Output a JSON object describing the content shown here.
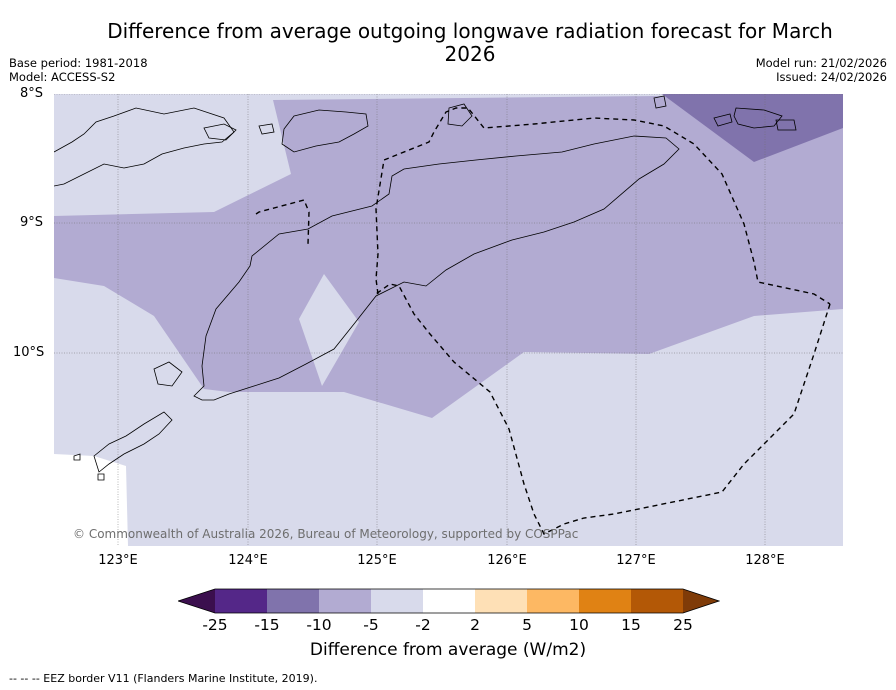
{
  "title": "Difference from average outgoing longwave radiation forecast for March 2026",
  "meta": {
    "base_period": "Base period: 1981-2018",
    "model": "Model: ACCESS-S2",
    "model_run": "Model run: 21/02/2026",
    "issued": "Issued: 24/02/2026"
  },
  "lat_labels": [
    "8°S",
    "9°S",
    "10°S"
  ],
  "lon_labels": [
    "123°E",
    "124°E",
    "125°E",
    "126°E",
    "127°E",
    "128°E"
  ],
  "copyright": "© Commonwealth of Australia 2026, Bureau of Meteorology, supported by COSPPac",
  "colors": {
    "c_m25": "#3b0f4e",
    "c_m15": "#542788",
    "c_m10": "#8073ac",
    "c_m5": "#b2abd2",
    "c_m2": "#d8daeb",
    "c_0": "#ffffff",
    "c_p2": "#fee0b6",
    "c_p5": "#fdb863",
    "c_p10": "#e08214",
    "c_p15": "#b35806",
    "c_p25": "#7f3b08"
  },
  "legend": {
    "ticks": [
      "-25",
      "-15",
      "-10",
      "-5",
      "-2",
      "2",
      "5",
      "10",
      "15",
      "25"
    ],
    "title": "Difference from average (W/m2)"
  },
  "footnote": "--  --  -- EEZ border V11 (Flanders Marine Institute, 2019)."
}
